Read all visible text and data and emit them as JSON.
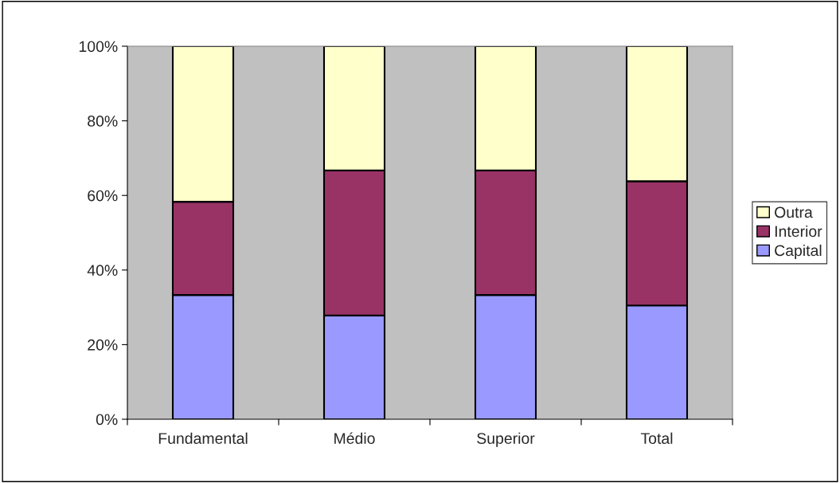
{
  "chart_data": {
    "type": "bar",
    "stacked": true,
    "categories": [
      "Fundamental",
      "Médio",
      "Superior",
      "Total"
    ],
    "series": [
      {
        "name": "Capital",
        "color": "#9999ff",
        "values": [
          33.3,
          27.8,
          33.3,
          30.5
        ]
      },
      {
        "name": "Interior",
        "color": "#993366",
        "values": [
          25.0,
          38.9,
          33.4,
          33.3
        ]
      },
      {
        "name": "Outra",
        "color": "#ffffcc",
        "values": [
          41.7,
          33.3,
          33.3,
          36.2
        ]
      }
    ],
    "ylim": [
      0,
      100
    ],
    "yticks": [
      {
        "value": 0,
        "label": "0%"
      },
      {
        "value": 20,
        "label": "20%"
      },
      {
        "value": 40,
        "label": "40%"
      },
      {
        "value": 60,
        "label": "60%"
      },
      {
        "value": 80,
        "label": "80%"
      },
      {
        "value": 100,
        "label": "100%"
      }
    ],
    "grid": false,
    "legend": "right"
  }
}
